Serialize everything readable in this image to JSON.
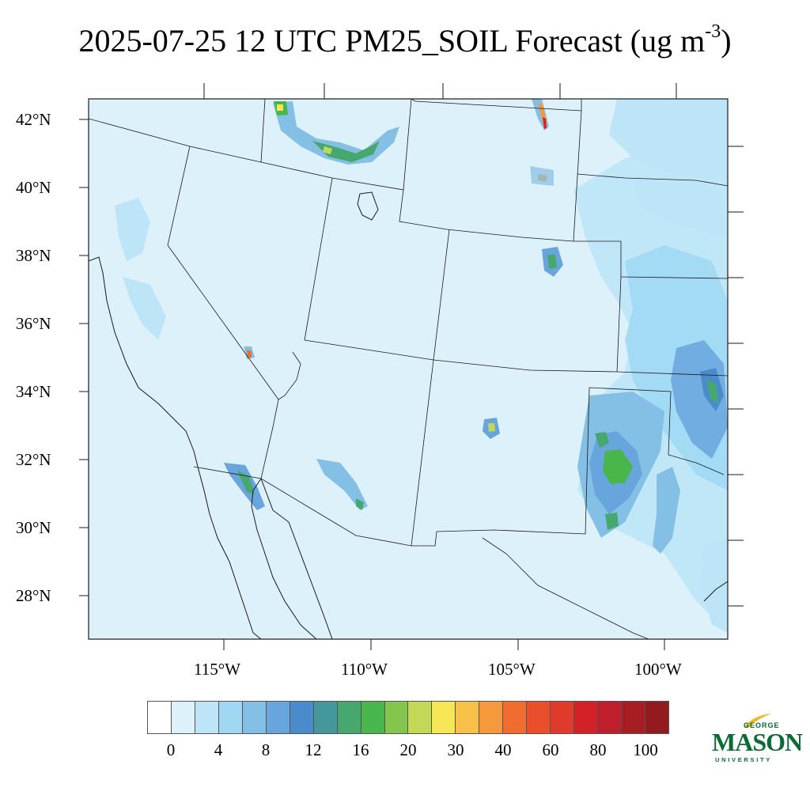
{
  "title": {
    "main": "2025-07-25 12 UTC PM25_SOIL Forecast (ug m",
    "sup": "-3",
    "close": ")"
  },
  "lat_labels": [
    "42°N",
    "40°N",
    "38°N",
    "36°N",
    "34°N",
    "32°N",
    "30°N",
    "28°N"
  ],
  "lon_labels": [
    "115°W",
    "110°W",
    "105°W",
    "100°W"
  ],
  "colorbar": {
    "colors": [
      "#ffffff",
      "#ddf1fb",
      "#bde5f7",
      "#a0d8f3",
      "#84bfe5",
      "#68a5dc",
      "#4a8ccb",
      "#44989b",
      "#47a86f",
      "#48b64a",
      "#84c54e",
      "#c2d856",
      "#f6e756",
      "#f7c048",
      "#f5993d",
      "#f06c2f",
      "#e94f2b",
      "#df3a2b",
      "#d42128",
      "#bf1e2d",
      "#a61d24",
      "#931a1e"
    ],
    "labels": [
      "0",
      "4",
      "8",
      "12",
      "16",
      "20",
      "30",
      "40",
      "60",
      "80",
      "100"
    ]
  },
  "logo": {
    "line1": "GEORGE",
    "line2": "MASON",
    "line3": "UNIVERSITY"
  },
  "map": {
    "background_color": "#ddf1fb",
    "border_color": "#1a1a1a"
  }
}
